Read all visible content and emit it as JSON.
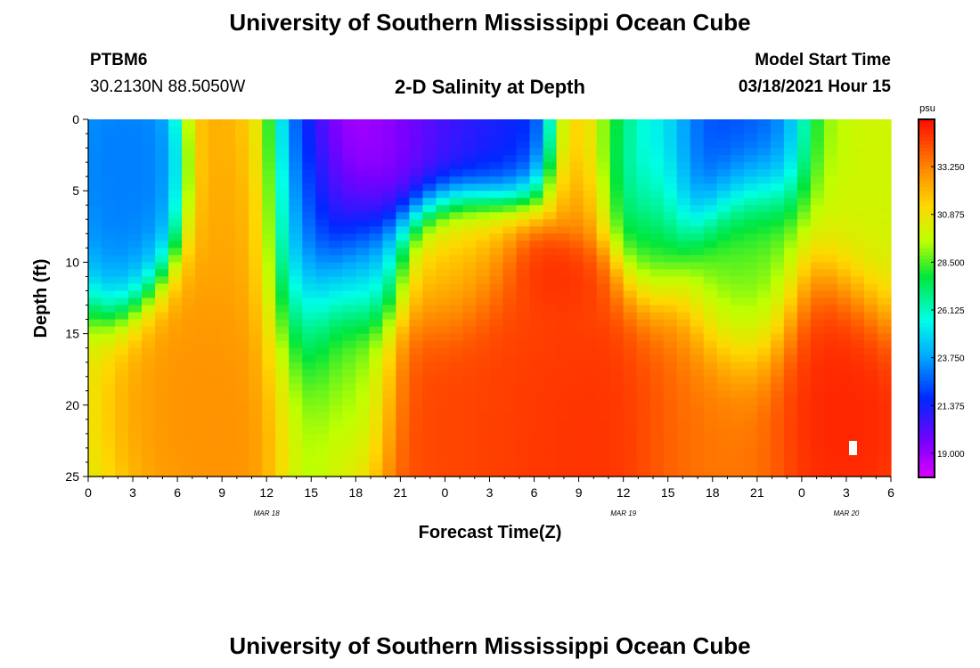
{
  "page": {
    "title_top": "University of Southern Mississippi Ocean Cube",
    "title_bottom": "University of Southern Mississippi Ocean Cube",
    "station_id": "PTBM6",
    "station_coords": "30.2130N 88.5050W",
    "plot_title": "2-D Salinity at Depth",
    "model_label": "Model Start Time",
    "model_time": "03/18/2021 Hour 15"
  },
  "chart_data": {
    "type": "heatmap",
    "title": "2-D Salinity at Depth",
    "xlabel": "Forecast Time(Z)",
    "ylabel": "Depth (ft)",
    "x_range_hours": [
      0,
      54
    ],
    "x_tick_labels": [
      "0",
      "3",
      "6",
      "9",
      "12",
      "15",
      "18",
      "21",
      "0",
      "3",
      "6",
      "9",
      "12",
      "15",
      "18",
      "21",
      "0",
      "3",
      "6"
    ],
    "date_labels": [
      {
        "hour": 12,
        "label": "MAR 18"
      },
      {
        "hour": 36,
        "label": "MAR 19"
      },
      {
        "hour": 51,
        "label": "MAR 20"
      }
    ],
    "y_range": [
      0,
      25
    ],
    "y_ticks": [
      0,
      5,
      10,
      15,
      20,
      25
    ],
    "x_cells": 60,
    "y_cells": 50,
    "colorbar": {
      "units": "psu",
      "min": 17.8,
      "max": 35.6,
      "tick_labels": [
        "33.250",
        "30.875",
        "28.500",
        "26.125",
        "23.750",
        "21.375",
        "19.000"
      ],
      "tick_values": [
        33.25,
        30.875,
        28.5,
        26.125,
        23.75,
        21.375,
        19.0
      ]
    },
    "salinity_features": [
      {
        "hour": 2.5,
        "depth": 3.5,
        "value": 23.0,
        "sx": 1.8,
        "sy": 3.8
      },
      {
        "hour": 10.5,
        "depth": 4,
        "value": 32.5,
        "sx": 1.8,
        "sy": 8
      },
      {
        "hour": 11,
        "depth": 20,
        "value": 33.0,
        "sx": 3.5,
        "sy": 5
      },
      {
        "hour": 14.5,
        "depth": 8,
        "value": 23.5,
        "sx": 1.5,
        "sy": 10
      },
      {
        "hour": 18.5,
        "depth": 0,
        "value": 17.8,
        "sx": 3,
        "sy": 4
      },
      {
        "hour": 21,
        "depth": 1,
        "value": 19.5,
        "sx": 3.5,
        "sy": 3.5
      },
      {
        "hour": 25,
        "depth": 0,
        "value": 21.5,
        "sx": 3,
        "sy": 2.5
      },
      {
        "hour": 17.5,
        "depth": 7,
        "value": 20.0,
        "sx": 2,
        "sy": 3
      },
      {
        "hour": 18.5,
        "depth": 11,
        "value": 24.0,
        "sx": 1.5,
        "sy": 2.5
      },
      {
        "hour": 18,
        "depth": 17,
        "value": 27.5,
        "sx": 1.5,
        "sy": 5
      },
      {
        "hour": 26,
        "depth": 20,
        "value": 34.5,
        "sx": 5,
        "sy": 6
      },
      {
        "hour": 33,
        "depth": 22,
        "value": 35.0,
        "sx": 4,
        "sy": 5
      },
      {
        "hour": 32,
        "depth": 11,
        "value": 35.0,
        "sx": 1.5,
        "sy": 1.5
      },
      {
        "hour": 33.5,
        "depth": 2,
        "value": 34.0,
        "sx": 1.2,
        "sy": 5
      },
      {
        "hour": 35.5,
        "depth": 0,
        "value": 29.0,
        "sx": 1.0,
        "sy": 4
      },
      {
        "hour": 38,
        "depth": 3,
        "value": 28.5,
        "sx": 1.5,
        "sy": 5
      },
      {
        "hour": 40,
        "depth": 1.5,
        "value": 22.0,
        "sx": 4,
        "sy": 3.5
      },
      {
        "hour": 44,
        "depth": 11,
        "value": 28.5,
        "sx": 2,
        "sy": 4
      },
      {
        "hour": 42,
        "depth": 22,
        "value": 33.5,
        "sx": 3,
        "sy": 5
      },
      {
        "hour": 50,
        "depth": 20,
        "value": 35.2,
        "sx": 2.5,
        "sy": 5
      },
      {
        "hour": 53,
        "depth": 4,
        "value": 30.0,
        "sx": 2.5,
        "sy": 5
      },
      {
        "hour": 24,
        "depth": 10,
        "value": 31.5,
        "sx": 2,
        "sy": 3
      }
    ],
    "background_value": 30.0
  },
  "colors": {
    "axis": "#000000",
    "marker": "#ffffff"
  }
}
